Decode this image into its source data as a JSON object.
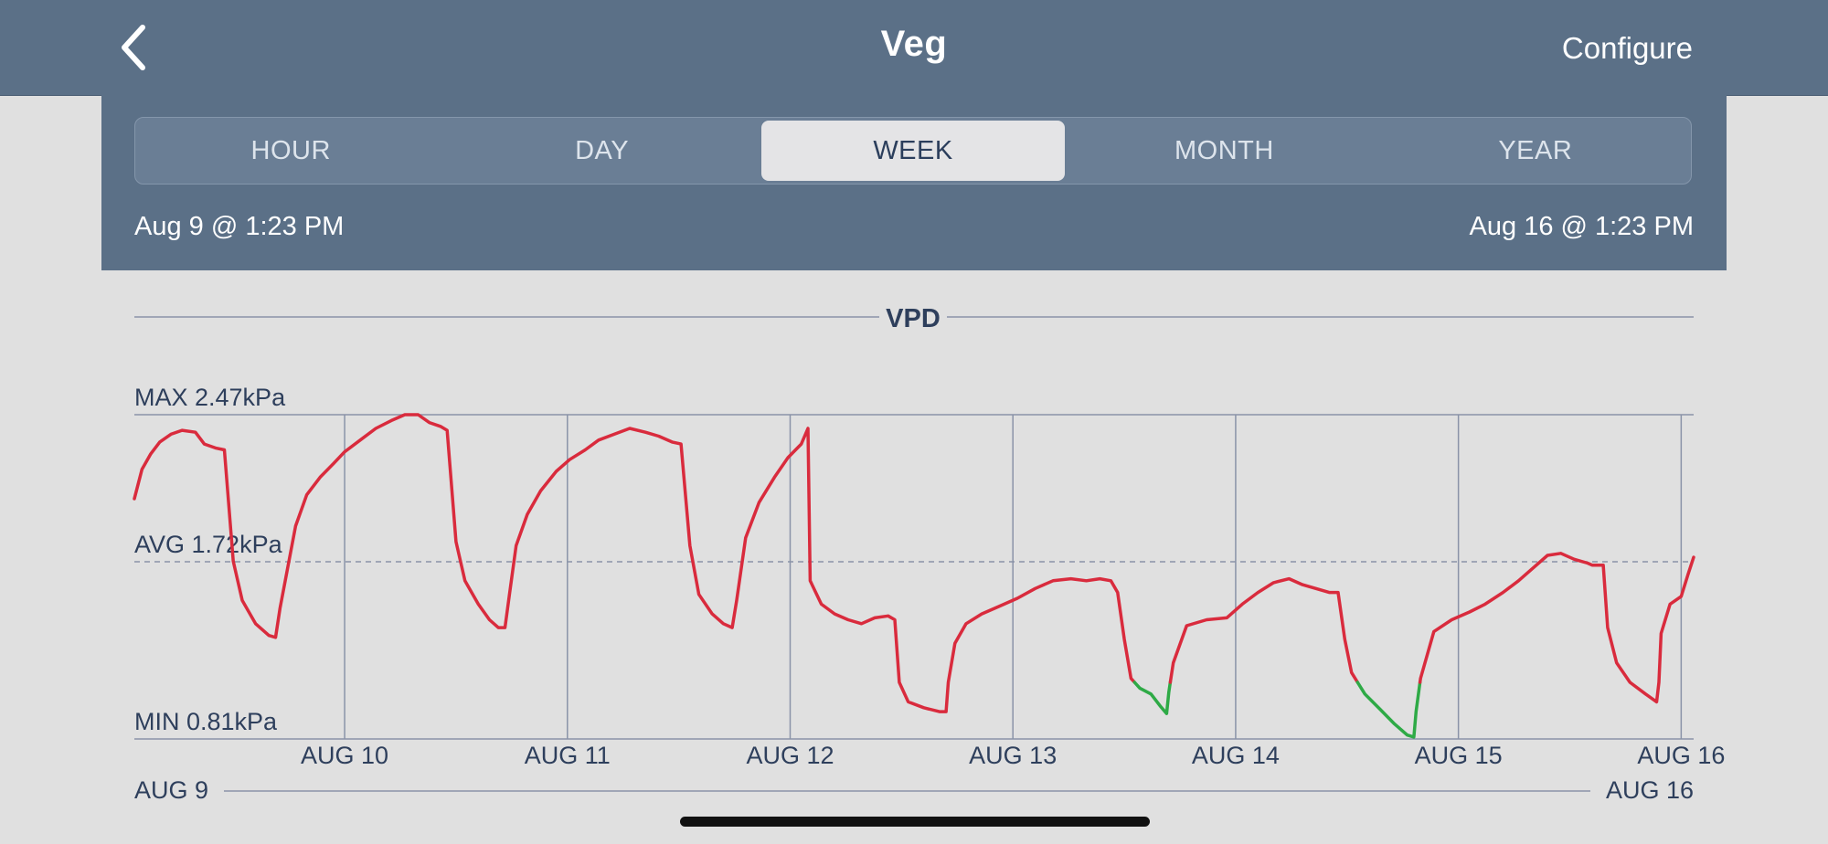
{
  "header": {
    "title": "Veg",
    "configure_label": "Configure",
    "back_icon": "chevron-left-icon"
  },
  "range_selector": {
    "options": [
      "HOUR",
      "DAY",
      "WEEK",
      "MONTH",
      "YEAR"
    ],
    "selected": "WEEK"
  },
  "date_range": {
    "start": "Aug 9 @ 1:23 PM",
    "end": "Aug 16 @ 1:23 PM"
  },
  "colors": {
    "header_bg": "#5b7087",
    "page_bg": "#e0e0e0",
    "line_above_threshold": "#d92b3d",
    "line_below_threshold": "#2eaa46",
    "grid": "#8a93a8",
    "label_text": "#2e3f5c"
  },
  "chart_data": {
    "type": "line",
    "title": "VPD",
    "unit": "kPa",
    "max_label": "MAX 2.47kPa",
    "avg_label": "AVG 1.72kPa",
    "min_label": "MIN 0.81kPa",
    "max": 2.47,
    "avg": 1.72,
    "min": 0.81,
    "ylim": [
      0.81,
      2.47
    ],
    "x_range_days": [
      9.056,
      16.056
    ],
    "x_start_label": "AUG 9",
    "x_end_label": "AUG 16",
    "green_threshold": 1.1,
    "tick_labels": [
      "AUG 10",
      "AUG 11",
      "AUG 12",
      "AUG 13",
      "AUG 14",
      "AUG 15",
      "AUG 16"
    ],
    "tick_days": [
      10,
      11,
      12,
      13,
      14,
      15,
      16
    ],
    "x_unit": "days (August)",
    "series": [
      {
        "points": [
          [
            9.056,
            2.04
          ],
          [
            9.09,
            2.19
          ],
          [
            9.13,
            2.27
          ],
          [
            9.17,
            2.33
          ],
          [
            9.22,
            2.37
          ],
          [
            9.27,
            2.39
          ],
          [
            9.33,
            2.38
          ],
          [
            9.37,
            2.32
          ],
          [
            9.42,
            2.3
          ],
          [
            9.46,
            2.29
          ],
          [
            9.5,
            1.72
          ],
          [
            9.54,
            1.52
          ],
          [
            9.6,
            1.4
          ],
          [
            9.66,
            1.34
          ],
          [
            9.69,
            1.33
          ],
          [
            9.71,
            1.48
          ],
          [
            9.74,
            1.66
          ],
          [
            9.78,
            1.9
          ],
          [
            9.83,
            2.06
          ],
          [
            9.89,
            2.15
          ],
          [
            9.95,
            2.22
          ],
          [
            10.0,
            2.28
          ],
          [
            10.07,
            2.34
          ],
          [
            10.14,
            2.4
          ],
          [
            10.21,
            2.44
          ],
          [
            10.27,
            2.47
          ],
          [
            10.33,
            2.47
          ],
          [
            10.38,
            2.43
          ],
          [
            10.43,
            2.41
          ],
          [
            10.46,
            2.39
          ],
          [
            10.5,
            1.82
          ],
          [
            10.54,
            1.62
          ],
          [
            10.6,
            1.5
          ],
          [
            10.65,
            1.42
          ],
          [
            10.69,
            1.38
          ],
          [
            10.72,
            1.38
          ],
          [
            10.74,
            1.55
          ],
          [
            10.77,
            1.8
          ],
          [
            10.82,
            1.96
          ],
          [
            10.88,
            2.08
          ],
          [
            10.95,
            2.18
          ],
          [
            11.01,
            2.24
          ],
          [
            11.08,
            2.29
          ],
          [
            11.14,
            2.34
          ],
          [
            11.21,
            2.37
          ],
          [
            11.28,
            2.4
          ],
          [
            11.35,
            2.38
          ],
          [
            11.41,
            2.36
          ],
          [
            11.47,
            2.33
          ],
          [
            11.51,
            2.32
          ],
          [
            11.55,
            1.8
          ],
          [
            11.59,
            1.55
          ],
          [
            11.65,
            1.45
          ],
          [
            11.7,
            1.4
          ],
          [
            11.74,
            1.38
          ],
          [
            11.76,
            1.52
          ],
          [
            11.8,
            1.84
          ],
          [
            11.86,
            2.02
          ],
          [
            11.93,
            2.15
          ],
          [
            11.99,
            2.25
          ],
          [
            12.05,
            2.32
          ],
          [
            12.08,
            2.4
          ],
          [
            12.09,
            1.62
          ],
          [
            12.14,
            1.5
          ],
          [
            12.2,
            1.45
          ],
          [
            12.26,
            1.42
          ],
          [
            12.32,
            1.4
          ],
          [
            12.38,
            1.43
          ],
          [
            12.44,
            1.44
          ],
          [
            12.47,
            1.42
          ],
          [
            12.49,
            1.1
          ],
          [
            12.53,
            1.0
          ],
          [
            12.6,
            0.97
          ],
          [
            12.67,
            0.95
          ],
          [
            12.7,
            0.95
          ],
          [
            12.71,
            1.1
          ],
          [
            12.74,
            1.3
          ],
          [
            12.79,
            1.4
          ],
          [
            12.86,
            1.45
          ],
          [
            12.94,
            1.49
          ],
          [
            13.02,
            1.53
          ],
          [
            13.1,
            1.58
          ],
          [
            13.18,
            1.62
          ],
          [
            13.26,
            1.63
          ],
          [
            13.33,
            1.62
          ],
          [
            13.39,
            1.63
          ],
          [
            13.44,
            1.62
          ],
          [
            13.47,
            1.56
          ],
          [
            13.5,
            1.32
          ],
          [
            13.53,
            1.12
          ],
          [
            13.57,
            1.07
          ],
          [
            13.62,
            1.04
          ],
          [
            13.66,
            0.98
          ],
          [
            13.69,
            0.94
          ],
          [
            13.7,
            1.05
          ],
          [
            13.72,
            1.2
          ],
          [
            13.78,
            1.39
          ],
          [
            13.87,
            1.42
          ],
          [
            13.96,
            1.43
          ],
          [
            14.03,
            1.5
          ],
          [
            14.1,
            1.56
          ],
          [
            14.17,
            1.61
          ],
          [
            14.24,
            1.63
          ],
          [
            14.3,
            1.6
          ],
          [
            14.36,
            1.58
          ],
          [
            14.42,
            1.56
          ],
          [
            14.46,
            1.56
          ],
          [
            14.49,
            1.32
          ],
          [
            14.52,
            1.15
          ],
          [
            14.58,
            1.04
          ],
          [
            14.65,
            0.96
          ],
          [
            14.71,
            0.89
          ],
          [
            14.77,
            0.83
          ],
          [
            14.8,
            0.82
          ],
          [
            14.81,
            0.95
          ],
          [
            14.83,
            1.12
          ],
          [
            14.89,
            1.36
          ],
          [
            14.97,
            1.42
          ],
          [
            15.05,
            1.46
          ],
          [
            15.12,
            1.5
          ],
          [
            15.2,
            1.56
          ],
          [
            15.27,
            1.62
          ],
          [
            15.34,
            1.69
          ],
          [
            15.4,
            1.75
          ],
          [
            15.46,
            1.76
          ],
          [
            15.52,
            1.73
          ],
          [
            15.58,
            1.71
          ],
          [
            15.6,
            1.7
          ],
          [
            15.62,
            1.7
          ],
          [
            15.65,
            1.7
          ],
          [
            15.67,
            1.38
          ],
          [
            15.71,
            1.2
          ],
          [
            15.77,
            1.1
          ],
          [
            15.84,
            1.04
          ],
          [
            15.89,
            1.0
          ],
          [
            15.9,
            1.1
          ],
          [
            15.91,
            1.35
          ],
          [
            15.95,
            1.5
          ],
          [
            16.0,
            1.54
          ],
          [
            16.03,
            1.65
          ],
          [
            16.056,
            1.74
          ]
        ]
      }
    ]
  }
}
